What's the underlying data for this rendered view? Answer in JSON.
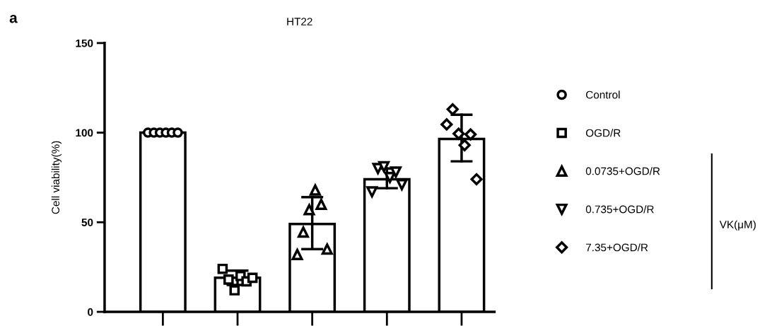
{
  "chart_data": {
    "type": "bar",
    "title": "HT22",
    "ylabel": "Cell viability(%)",
    "categories": [
      null,
      null,
      null,
      null,
      null
    ],
    "values": [
      100,
      19,
      49,
      74,
      96.5
    ],
    "errors": [
      null,
      [
        15,
        23
      ],
      [
        35,
        64
      ],
      [
        69,
        80
      ],
      [
        84,
        110
      ]
    ],
    "color": "#ffffff",
    "series": [
      {
        "name": "Control",
        "type": "scatter",
        "marker": "circle",
        "color": "#000000",
        "values": [
          100,
          null,
          null,
          null,
          null
        ]
      },
      {
        "type": "scatter",
        "marker": "circle",
        "color": "#000000",
        "values": [
          100,
          null,
          null,
          null,
          null
        ]
      },
      {
        "type": "scatter",
        "marker": "circle",
        "color": "#000000",
        "values": [
          100,
          null,
          null,
          null,
          null
        ]
      },
      {
        "type": "scatter",
        "marker": "circle",
        "color": "#000000",
        "values": [
          100,
          null,
          null,
          null,
          null
        ]
      },
      {
        "type": "scatter",
        "marker": "circle",
        "color": "#000000",
        "values": [
          100,
          null,
          null,
          null,
          null
        ]
      },
      {
        "type": "scatter",
        "marker": "circle",
        "color": "#000000",
        "values": [
          100,
          null,
          null,
          null,
          null
        ]
      },
      {
        "name": "OGD/R",
        "type": "scatter",
        "marker": "square",
        "color": "#000000",
        "values": [
          null,
          24,
          null,
          null,
          null
        ]
      },
      {
        "type": "scatter",
        "marker": "square",
        "color": "#000000",
        "values": [
          null,
          18,
          null,
          null,
          null
        ]
      },
      {
        "type": "scatter",
        "marker": "square",
        "color": "#000000",
        "values": [
          null,
          12,
          null,
          null,
          null
        ]
      },
      {
        "type": "scatter",
        "marker": "square",
        "color": "#000000",
        "values": [
          null,
          20,
          null,
          null,
          null
        ]
      },
      {
        "type": "scatter",
        "marker": "square",
        "color": "#000000",
        "values": [
          null,
          17,
          null,
          null,
          null
        ]
      },
      {
        "type": "scatter",
        "marker": "square",
        "color": "#000000",
        "values": [
          null,
          19,
          null,
          null,
          null
        ]
      },
      {
        "name": "0.0735+OGD/R",
        "type": "scatter",
        "marker": "triangle",
        "color": "#000000",
        "values": [
          null,
          null,
          32,
          null,
          null
        ]
      },
      {
        "type": "scatter",
        "marker": "triangle",
        "color": "#000000",
        "values": [
          null,
          null,
          44.5,
          null,
          null
        ]
      },
      {
        "type": "scatter",
        "marker": "triangle",
        "color": "#000000",
        "values": [
          null,
          null,
          57,
          null,
          null
        ]
      },
      {
        "type": "scatter",
        "marker": "triangle",
        "color": "#000000",
        "values": [
          null,
          null,
          68,
          null,
          null
        ]
      },
      {
        "type": "scatter",
        "marker": "triangle",
        "color": "#000000",
        "values": [
          null,
          null,
          60,
          null,
          null
        ]
      },
      {
        "type": "scatter",
        "marker": "triangle",
        "color": "#000000",
        "values": [
          null,
          null,
          35,
          null,
          null
        ]
      },
      {
        "name": "0.735+OGD/R",
        "type": "scatter",
        "marker": "triangle_down",
        "color": "#000000",
        "values": [
          null,
          null,
          null,
          67,
          null
        ]
      },
      {
        "type": "scatter",
        "marker": "triangle_down",
        "color": "#000000",
        "values": [
          null,
          null,
          null,
          80,
          null
        ]
      },
      {
        "type": "scatter",
        "marker": "triangle_down",
        "color": "#000000",
        "values": [
          null,
          null,
          null,
          81,
          null
        ]
      },
      {
        "type": "scatter",
        "marker": "triangle_down",
        "color": "#000000",
        "values": [
          null,
          null,
          null,
          75,
          null
        ]
      },
      {
        "type": "scatter",
        "marker": "triangle_down",
        "color": "#000000",
        "values": [
          null,
          null,
          null,
          78,
          null
        ]
      },
      {
        "type": "scatter",
        "marker": "triangle_down",
        "color": "#000000",
        "values": [
          null,
          null,
          null,
          71,
          null
        ]
      },
      {
        "name": "7.35+OGD/R",
        "type": "scatter",
        "marker": "diamond",
        "color": "#000000",
        "values": [
          null,
          null,
          null,
          null,
          104.6
        ]
      },
      {
        "type": "scatter",
        "marker": "diamond",
        "color": "#000000",
        "values": [
          null,
          null,
          null,
          null,
          113
        ]
      },
      {
        "type": "scatter",
        "marker": "diamond",
        "color": "#000000",
        "values": [
          null,
          null,
          null,
          null,
          99.4
        ]
      },
      {
        "type": "scatter",
        "marker": "diamond",
        "color": "#000000",
        "values": [
          null,
          null,
          null,
          null,
          93
        ]
      },
      {
        "type": "scatter",
        "marker": "diamond",
        "color": "#000000",
        "values": [
          null,
          null,
          null,
          null,
          99
        ]
      },
      {
        "type": "scatter",
        "marker": "diamond",
        "color": "#000000",
        "values": [
          null,
          null,
          null,
          null,
          74
        ]
      }
    ],
    "ylim": [
      0,
      150
    ],
    "yticks": [
      0,
      50,
      100,
      150
    ],
    "legend": "right",
    "annotations": [
      "a",
      "VK(μM)"
    ]
  }
}
